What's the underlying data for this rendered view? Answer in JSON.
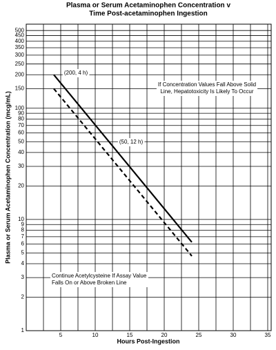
{
  "chart_data": {
    "type": "line",
    "title": [
      "Plasma or Serum Acetaminophen Concentration v",
      "Time Post-acetaminophen Ingestion"
    ],
    "xlabel": "Hours Post-Ingestion",
    "ylabel": "Plasma or Serum Acetaminophen Concentration (mcg/mL)",
    "yscale": "log",
    "xlim": [
      0,
      35.5
    ],
    "ylim": [
      1,
      570
    ],
    "xticks": [
      5,
      10,
      15,
      20,
      25,
      30,
      35
    ],
    "xminor": [
      2.5,
      7.5,
      12.5,
      17.5,
      22.5,
      27.5,
      32.5
    ],
    "yticks": [
      1,
      2,
      3,
      4,
      5,
      6,
      7,
      8,
      9,
      10,
      20,
      30,
      40,
      50,
      60,
      70,
      80,
      90,
      100,
      150,
      200,
      250,
      300,
      350,
      400,
      450,
      500
    ],
    "grid": true,
    "series": [
      {
        "color": "#000000",
        "dash": "solid",
        "x": [
          4,
          24
        ],
        "values": [
          200,
          6.25
        ]
      },
      {
        "color": "#000000",
        "dash": "dashed",
        "x": [
          4,
          24
        ],
        "values": [
          150,
          4.69
        ]
      }
    ],
    "annotations": [
      [
        "(200, 4 h)"
      ],
      [
        "(50, 12 h)"
      ],
      [
        "If Concentration Values Fall Above Solid",
        "Line, Hepatotoxicity Is Likely To Occur"
      ],
      [
        "Continue Acetylcysteine If Assay Value",
        "Falls On or Above Broken Line"
      ]
    ]
  }
}
